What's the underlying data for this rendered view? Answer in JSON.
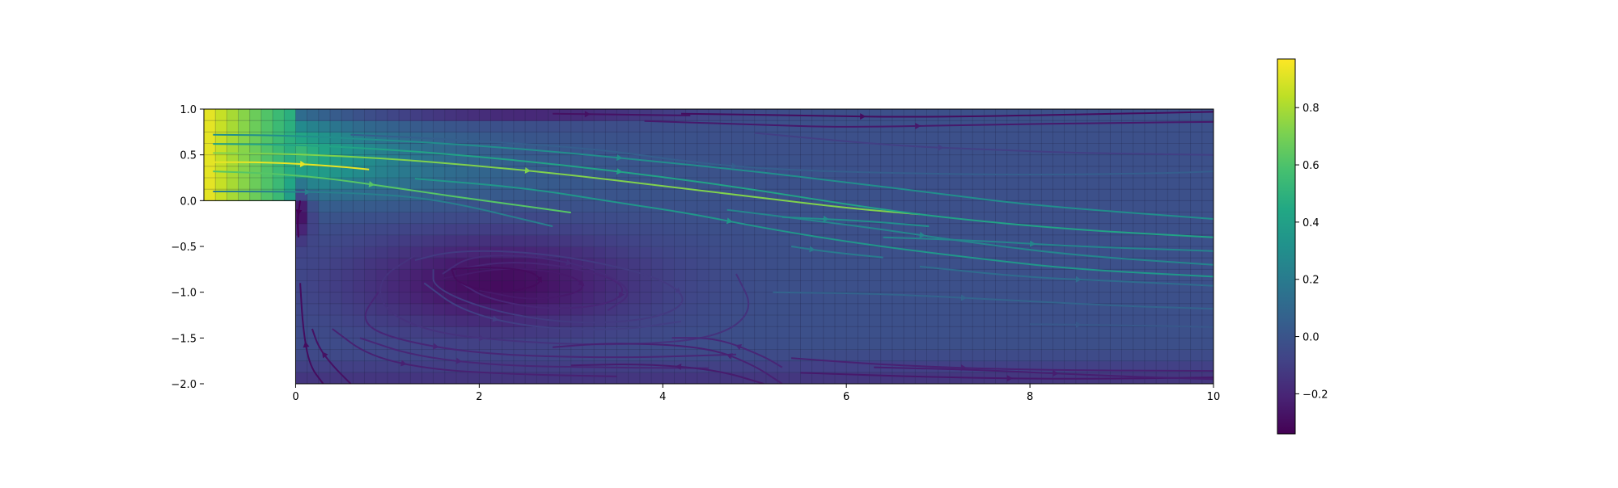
{
  "chart_data": {
    "type": "heatmap",
    "title": "",
    "xlabel": "",
    "ylabel": "",
    "xlim": [
      -1,
      10
    ],
    "ylim": [
      -2,
      1
    ],
    "x_ticks": [
      "0",
      "2",
      "4",
      "6",
      "8",
      "10"
    ],
    "y_ticks": [
      "1.0",
      "0.5",
      "0.0",
      "−0.5",
      "−1.0",
      "−1.5",
      "−2.0"
    ],
    "x_tick_values": [
      0,
      2,
      4,
      6,
      8,
      10
    ],
    "y_tick_values": [
      1.0,
      0.5,
      0.0,
      -0.5,
      -1.0,
      -1.5,
      -2.0
    ],
    "grid": true,
    "colormap": "viridis",
    "colorbar": {
      "ticks": [
        "0.8",
        "0.6",
        "0.4",
        "0.2",
        "0.0",
        "−0.2"
      ],
      "tick_values": [
        0.8,
        0.6,
        0.4,
        0.2,
        0.0,
        -0.2
      ],
      "min": -0.34,
      "max": 0.97
    },
    "geometry": "backward-facing step: inlet channel x ∈ [-1, 0], y ∈ [0, 1]; expansion x ∈ [0, 10], y ∈ [-2, 1]",
    "field_description": {
      "inlet_value": 0.95,
      "recirculation_center": [
        2.2,
        -0.9
      ],
      "recirculation_value": -0.3,
      "top_right_value": -0.25,
      "downstream_value": -0.02
    },
    "streamlines": [
      {
        "points": [
          [
            -0.9,
            0.42
          ],
          [
            -0.3,
            0.42
          ],
          [
            0.4,
            0.38
          ],
          [
            0.8,
            0.34
          ]
        ],
        "value": 0.93
      },
      {
        "points": [
          [
            -0.9,
            0.52
          ],
          [
            0,
            0.51
          ],
          [
            1,
            0.46
          ],
          [
            2,
            0.38
          ],
          [
            3,
            0.28
          ],
          [
            4,
            0.16
          ],
          [
            5,
            0.04
          ],
          [
            6,
            -0.08
          ],
          [
            6.8,
            -0.15
          ]
        ],
        "value": 0.72
      },
      {
        "points": [
          [
            -0.9,
            0.62
          ],
          [
            0,
            0.61
          ],
          [
            1,
            0.56
          ],
          [
            2,
            0.48
          ],
          [
            3,
            0.38
          ],
          [
            4,
            0.26
          ],
          [
            5,
            0.12
          ],
          [
            6,
            -0.04
          ],
          [
            7,
            -0.18
          ],
          [
            8.5,
            -0.32
          ],
          [
            10,
            -0.4
          ]
        ],
        "value": 0.42
      },
      {
        "points": [
          [
            -0.9,
            0.72
          ],
          [
            0,
            0.71
          ],
          [
            1,
            0.66
          ],
          [
            2,
            0.6
          ],
          [
            3,
            0.52
          ],
          [
            4,
            0.42
          ],
          [
            5,
            0.32
          ],
          [
            6,
            0.2
          ],
          [
            7,
            0.08
          ],
          [
            8,
            -0.05
          ],
          [
            10,
            -0.2
          ]
        ],
        "value": 0.3
      },
      {
        "points": [
          [
            -0.9,
            0.32
          ],
          [
            -0.3,
            0.3
          ],
          [
            0.4,
            0.24
          ],
          [
            1.2,
            0.12
          ],
          [
            2.2,
            -0.02
          ],
          [
            3,
            -0.13
          ]
        ],
        "value": 0.62
      },
      {
        "points": [
          [
            1.3,
            0.24
          ],
          [
            2.5,
            0.14
          ],
          [
            3.5,
            -0.02
          ],
          [
            4.3,
            -0.14
          ],
          [
            5.1,
            -0.3
          ],
          [
            6.2,
            -0.48
          ],
          [
            7.5,
            -0.64
          ],
          [
            8.5,
            -0.75
          ],
          [
            10,
            -0.83
          ]
        ],
        "value": 0.35
      },
      {
        "points": [
          [
            -0.9,
            0.1
          ],
          [
            -0.3,
            0.1
          ],
          [
            0.5,
            0.09
          ],
          [
            1.5,
            0.03
          ],
          [
            2.8,
            -0.28
          ]
        ],
        "value": 0.22
      },
      {
        "points": [
          [
            4.7,
            -0.1
          ],
          [
            5.5,
            -0.2
          ],
          [
            6.3,
            -0.3
          ],
          [
            7.3,
            -0.45
          ],
          [
            8.5,
            -0.6
          ],
          [
            10,
            -0.7
          ]
        ],
        "value": 0.25
      },
      {
        "points": [
          [
            5.3,
            -0.18
          ],
          [
            6.2,
            -0.22
          ],
          [
            6.9,
            -0.28
          ]
        ],
        "value": 0.3
      },
      {
        "points": [
          [
            6.4,
            -0.4
          ],
          [
            7.5,
            -0.44
          ],
          [
            8.5,
            -0.5
          ],
          [
            10,
            -0.55
          ]
        ],
        "value": 0.25
      },
      {
        "points": [
          [
            6.8,
            -0.72
          ],
          [
            8,
            -0.84
          ],
          [
            9,
            -0.88
          ],
          [
            10,
            -0.93
          ]
        ],
        "value": 0.12
      },
      {
        "points": [
          [
            5.2,
            -1.0
          ],
          [
            6.5,
            -1.02
          ],
          [
            8,
            -1.1
          ],
          [
            9,
            -1.15
          ],
          [
            10,
            -1.18
          ]
        ],
        "value": 0.08
      },
      {
        "points": [
          [
            8,
            -1.35
          ],
          [
            9,
            -1.36
          ],
          [
            10,
            -1.38
          ]
        ],
        "value": 0.02
      },
      {
        "points": [
          [
            5.4,
            -0.5
          ],
          [
            5.8,
            -0.56
          ],
          [
            6.4,
            -0.62
          ]
        ],
        "value": 0.2
      },
      {
        "points": [
          [
            0.6,
            0.72
          ],
          [
            1.5,
            0.68
          ],
          [
            2.5,
            0.62
          ],
          [
            3.4,
            0.55
          ],
          [
            4.3,
            0.42
          ],
          [
            5.2,
            0.34
          ],
          [
            6.5,
            0.3
          ],
          [
            8,
            0.28
          ],
          [
            9.5,
            0.3
          ],
          [
            10,
            0.32
          ]
        ],
        "value": 0.05
      },
      {
        "points": [
          [
            2.8,
            0.95
          ],
          [
            3.5,
            0.94
          ],
          [
            4.3,
            0.93
          ]
        ],
        "value": -0.28
      },
      {
        "points": [
          [
            4.2,
            0.95
          ],
          [
            5.5,
            0.93
          ],
          [
            6.8,
            0.91
          ],
          [
            8.5,
            0.94
          ],
          [
            10,
            0.97
          ]
        ],
        "value": -0.3
      },
      {
        "points": [
          [
            3.8,
            0.87
          ],
          [
            5,
            0.83
          ],
          [
            6,
            0.8
          ],
          [
            7.5,
            0.83
          ],
          [
            9,
            0.85
          ],
          [
            10,
            0.86
          ]
        ],
        "value": -0.25
      },
      {
        "points": [
          [
            5,
            0.74
          ],
          [
            6.5,
            0.6
          ],
          [
            7.5,
            0.56
          ],
          [
            8.5,
            0.52
          ],
          [
            10,
            0.5
          ]
        ],
        "value": -0.1
      },
      {
        "points": [
          [
            0.3,
            -2.0
          ],
          [
            0.15,
            -1.8
          ],
          [
            0.08,
            -1.4
          ],
          [
            0.05,
            -0.9
          ]
        ],
        "value": -0.3
      },
      {
        "points": [
          [
            0.6,
            -2.0
          ],
          [
            0.4,
            -1.8
          ],
          [
            0.25,
            -1.6
          ],
          [
            0.18,
            -1.4
          ]
        ],
        "value": -0.28
      },
      {
        "points": [
          [
            0.4,
            -1.4
          ],
          [
            0.8,
            -1.7
          ],
          [
            1.5,
            -1.85
          ],
          [
            2.5,
            -1.9
          ],
          [
            3.5,
            -1.92
          ]
        ],
        "value": -0.22
      },
      {
        "points": [
          [
            0.7,
            -1.5
          ],
          [
            1.3,
            -1.7
          ],
          [
            2.2,
            -1.8
          ],
          [
            3.2,
            -1.82
          ],
          [
            4.5,
            -1.83
          ]
        ],
        "value": -0.2
      },
      {
        "points": [
          [
            0.9,
            -1.0
          ],
          [
            0.7,
            -1.3
          ],
          [
            1.0,
            -1.5
          ],
          [
            2.0,
            -1.68
          ],
          [
            3.5,
            -1.72
          ],
          [
            4.8,
            -1.68
          ]
        ],
        "value": -0.2
      },
      {
        "points": [
          [
            1.3,
            -0.6
          ],
          [
            0.9,
            -0.85
          ],
          [
            0.95,
            -1.2
          ],
          [
            1.5,
            -1.45
          ],
          [
            2.5,
            -1.55
          ],
          [
            3.6,
            -1.58
          ],
          [
            4.6,
            -1.5
          ],
          [
            5.0,
            -1.2
          ],
          [
            4.8,
            -0.8
          ]
        ],
        "value": -0.15
      },
      {
        "points": [
          [
            1.4,
            -0.9
          ],
          [
            1.8,
            -1.2
          ],
          [
            2.5,
            -1.38
          ],
          [
            3.5,
            -1.42
          ],
          [
            4.2,
            -1.32
          ]
        ],
        "value": -0.1
      },
      {
        "points": [
          [
            1.3,
            -0.65
          ],
          [
            1.7,
            -0.55
          ],
          [
            2.4,
            -0.55
          ],
          [
            3.2,
            -0.65
          ],
          [
            4.0,
            -0.85
          ],
          [
            4.3,
            -1.1
          ],
          [
            3.9,
            -1.3
          ],
          [
            3.0,
            -1.35
          ],
          [
            2.1,
            -1.2
          ],
          [
            1.5,
            -0.95
          ],
          [
            1.5,
            -0.75
          ]
        ],
        "value": -0.12
      },
      {
        "points": [
          [
            1.75,
            -0.75
          ],
          [
            2.3,
            -0.66
          ],
          [
            3.0,
            -0.72
          ],
          [
            3.6,
            -0.9
          ],
          [
            3.5,
            -1.12
          ],
          [
            2.8,
            -1.2
          ],
          [
            2.1,
            -1.08
          ],
          [
            1.8,
            -0.9
          ]
        ],
        "value": -0.2
      },
      {
        "points": [
          [
            1.6,
            -0.8
          ],
          [
            1.9,
            -0.6
          ],
          [
            2.6,
            -0.6
          ],
          [
            3.3,
            -0.75
          ],
          [
            3.7,
            -1.0
          ],
          [
            3.4,
            -1.2
          ]
        ],
        "value": -0.18
      },
      {
        "points": [
          [
            1.6,
            -0.85
          ],
          [
            2.3,
            -0.72
          ],
          [
            3.0,
            -0.8
          ],
          [
            3.2,
            -0.98
          ],
          [
            2.6,
            -1.1
          ],
          [
            2.0,
            -0.98
          ]
        ],
        "value": -0.25
      },
      {
        "points": [
          [
            1.7,
            -0.75
          ],
          [
            2.1,
            -0.72
          ],
          [
            2.6,
            -0.77
          ],
          [
            2.7,
            -0.92
          ],
          [
            2.2,
            -1.02
          ],
          [
            1.75,
            -0.9
          ],
          [
            1.7,
            -0.75
          ]
        ],
        "value": -0.3
      },
      {
        "points": [
          [
            5.3,
            -2.0
          ],
          [
            5.0,
            -1.8
          ],
          [
            4.5,
            -1.6
          ],
          [
            3.5,
            -1.55
          ],
          [
            2.8,
            -1.6
          ]
        ],
        "value": -0.22
      },
      {
        "points": [
          [
            5.1,
            -2.0
          ],
          [
            4.6,
            -1.85
          ],
          [
            3.8,
            -1.78
          ],
          [
            3.0,
            -1.8
          ]
        ],
        "value": -0.24
      },
      {
        "points": [
          [
            5.3,
            -1.82
          ],
          [
            5.1,
            -1.7
          ],
          [
            4.6,
            -1.5
          ],
          [
            4.1,
            -1.5
          ]
        ],
        "value": -0.2
      },
      {
        "points": [
          [
            5.4,
            -1.72
          ],
          [
            6.5,
            -1.8
          ],
          [
            8,
            -1.85
          ],
          [
            10,
            -1.86
          ]
        ],
        "value": -0.22
      },
      {
        "points": [
          [
            5.5,
            -1.88
          ],
          [
            7,
            -1.93
          ],
          [
            8.5,
            -1.95
          ],
          [
            10,
            -1.93
          ]
        ],
        "value": -0.25
      },
      {
        "points": [
          [
            6.3,
            -1.82
          ],
          [
            7.5,
            -1.85
          ],
          [
            9,
            -1.92
          ],
          [
            10,
            -1.95
          ]
        ],
        "value": -0.23
      },
      {
        "points": [
          [
            0.05,
            0.0
          ],
          [
            0.02,
            -0.2
          ],
          [
            0.03,
            -0.4
          ]
        ],
        "value": -0.35
      }
    ]
  }
}
